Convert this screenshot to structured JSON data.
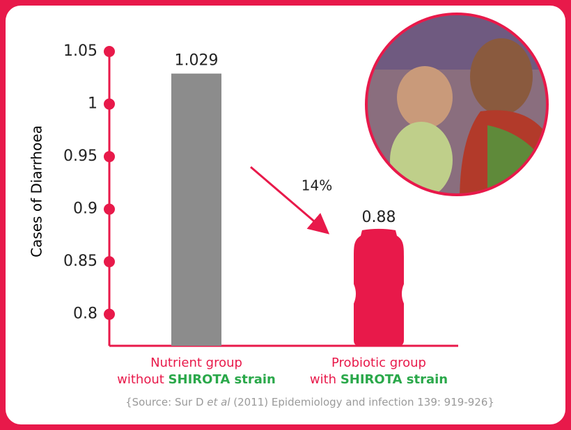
{
  "chart_data": {
    "type": "bar",
    "y_label": "Cases of Diarrhoea",
    "categories": [
      "Nutrient group",
      "Probiotic group"
    ],
    "category_sublabels": [
      "without",
      "with"
    ],
    "highlight": "SHIROTA strain",
    "values": [
      1.029,
      0.88
    ],
    "colors": [
      "#8c8c8c",
      "#e8194a"
    ],
    "mark_shapes": [
      "rect",
      "bottle"
    ],
    "ylim": [
      0.77,
      1.05
    ],
    "yticks": [
      0.8,
      0.85,
      0.9,
      0.95,
      1,
      1.05
    ],
    "annotation": "14%",
    "source": {
      "before": "{Source: Sur D ",
      "italic": "et al",
      "after": " (2011) Epidemiology and  infection 139: 919-926}"
    }
  }
}
